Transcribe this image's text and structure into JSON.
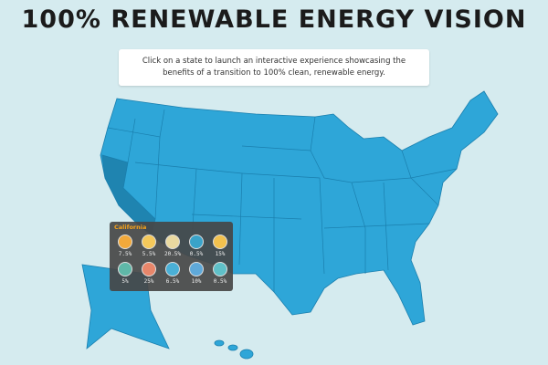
{
  "header": {
    "title": "100% RENEWABLE ENERGY VISION"
  },
  "instructions": [
    "Click on a state to launch an interactive experience showcasing the",
    "benefits of a transition to 100% clean, renewable energy."
  ],
  "tooltip": {
    "state": "California",
    "items": [
      "7.5%",
      "5.5%",
      "20.5%",
      "0.5%",
      "15%",
      "5%",
      "25%",
      "6.5%",
      "10%",
      "0.5%"
    ]
  }
}
